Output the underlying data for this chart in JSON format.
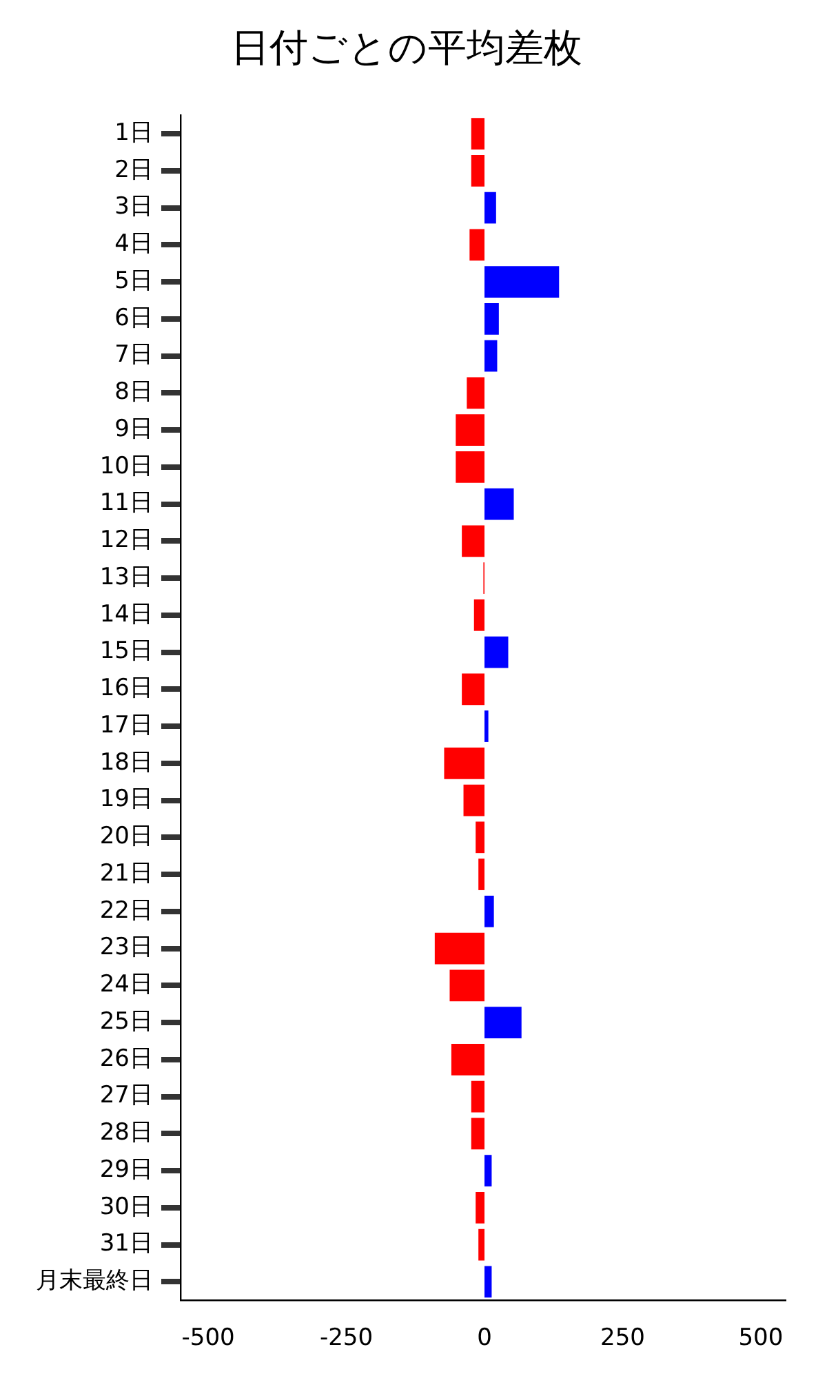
{
  "chart_data": {
    "type": "bar",
    "orientation": "horizontal",
    "title": "日付ごとの平均差枚",
    "categories": [
      "1日",
      "2日",
      "3日",
      "4日",
      "5日",
      "6日",
      "7日",
      "8日",
      "9日",
      "10日",
      "11日",
      "12日",
      "13日",
      "14日",
      "15日",
      "16日",
      "17日",
      "18日",
      "19日",
      "20日",
      "21日",
      "22日",
      "23日",
      "24日",
      "25日",
      "26日",
      "27日",
      "28日",
      "29日",
      "30日",
      "31日",
      "月末最終日"
    ],
    "values": [
      -24,
      -24,
      21,
      -27,
      135,
      26,
      23,
      -32,
      -52,
      -52,
      53,
      -41,
      -2,
      -19,
      43,
      -41,
      7,
      -73,
      -38,
      -16,
      -11,
      17,
      -90,
      -63,
      67,
      -60,
      -24,
      -24,
      13,
      -16,
      -11,
      13
    ],
    "colors": [
      "#ff0000",
      "#ff0000",
      "#0000ff",
      "#ff0000",
      "#0000ff",
      "#0000ff",
      "#0000ff",
      "#ff0000",
      "#ff0000",
      "#ff0000",
      "#0000ff",
      "#ff0000",
      "#ff0000",
      "#ff0000",
      "#0000ff",
      "#ff0000",
      "#0000ff",
      "#ff0000",
      "#ff0000",
      "#ff0000",
      "#ff0000",
      "#0000ff",
      "#ff0000",
      "#ff0000",
      "#0000ff",
      "#ff0000",
      "#ff0000",
      "#ff0000",
      "#0000ff",
      "#ff0000",
      "#ff0000",
      "#0000ff"
    ],
    "xlim": [
      -550,
      545
    ],
    "xticks": [
      -500,
      -250,
      0,
      250,
      500
    ],
    "grid": false,
    "legend": false
  }
}
